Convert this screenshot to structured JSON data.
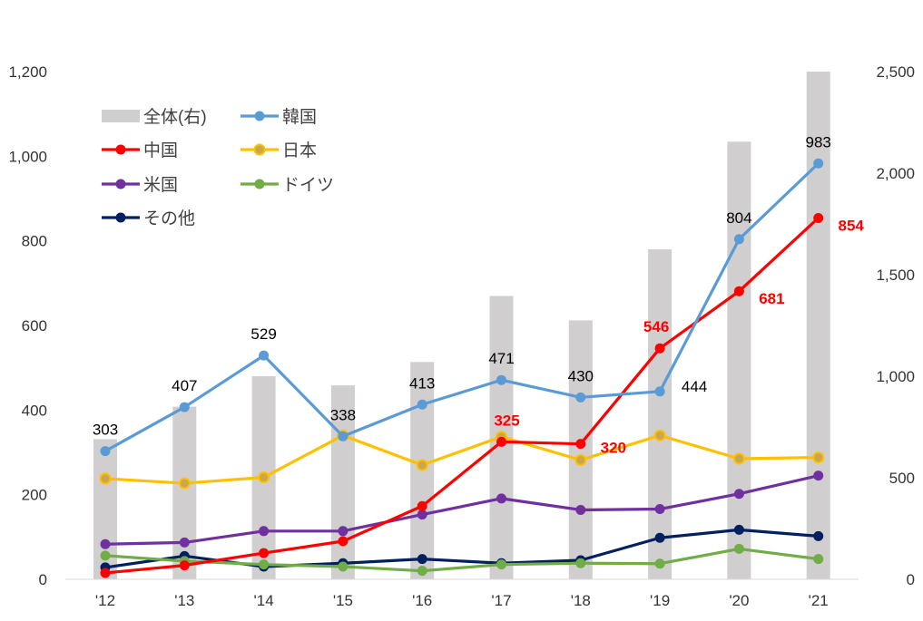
{
  "chart_data": {
    "type": "line",
    "categories": [
      "'12",
      "'13",
      "'14",
      "'15",
      "'16",
      "'17",
      "'18",
      "'19",
      "'20",
      "'21"
    ],
    "y_left": {
      "min": 0,
      "max": 1200,
      "ticks": [
        "0",
        "200",
        "400",
        "600",
        "800",
        "1,000",
        "1,200"
      ]
    },
    "y_right": {
      "min": 0,
      "max": 2500,
      "ticks": [
        "0",
        "500",
        "1,000",
        "1,500",
        "2,000",
        "2,500"
      ]
    },
    "grid": false,
    "legend_position": "top-left",
    "bars": {
      "name": "全体(右)",
      "axis": "right",
      "color": "#d0cece",
      "values": [
        690,
        850,
        1000,
        955,
        1070,
        1395,
        1275,
        1625,
        2155,
        2500
      ]
    },
    "series": [
      {
        "name": "韓国",
        "color": "#5b9bd5",
        "values": [
          303,
          407,
          529,
          338,
          413,
          471,
          430,
          444,
          804,
          983
        ],
        "labels": [
          {
            "i": 0,
            "text": "303"
          },
          {
            "i": 1,
            "text": "407"
          },
          {
            "i": 2,
            "text": "529"
          },
          {
            "i": 3,
            "text": "338"
          },
          {
            "i": 4,
            "text": "413"
          },
          {
            "i": 5,
            "text": "471"
          },
          {
            "i": 6,
            "text": "430"
          },
          {
            "i": 7,
            "text": "444"
          },
          {
            "i": 8,
            "text": "804"
          },
          {
            "i": 9,
            "text": "983"
          }
        ],
        "label_color": "#000000"
      },
      {
        "name": "中国",
        "color": "#ff0000",
        "values": [
          15,
          33,
          62,
          90,
          173,
          325,
          320,
          546,
          681,
          854
        ],
        "labels": [
          {
            "i": 5,
            "text": "325"
          },
          {
            "i": 6,
            "text": "320"
          },
          {
            "i": 7,
            "text": "546"
          },
          {
            "i": 8,
            "text": "681"
          },
          {
            "i": 9,
            "text": "854"
          }
        ],
        "label_color": "#ff0000"
      },
      {
        "name": "日本",
        "color": "#ffc000",
        "marker_fill": "#c8a84b",
        "values": [
          238,
          227,
          241,
          340,
          270,
          337,
          282,
          340,
          285,
          288
        ]
      },
      {
        "name": "米国",
        "color": "#7030a0",
        "values": [
          83,
          87,
          114,
          114,
          153,
          191,
          164,
          166,
          202,
          245
        ]
      },
      {
        "name": "ドイツ",
        "color": "#70ad47",
        "values": [
          56,
          43,
          35,
          30,
          20,
          35,
          38,
          37,
          72,
          48
        ]
      },
      {
        "name": "その他",
        "color": "#002060",
        "values": [
          28,
          55,
          30,
          38,
          48,
          38,
          45,
          98,
          117,
          102
        ]
      }
    ]
  }
}
